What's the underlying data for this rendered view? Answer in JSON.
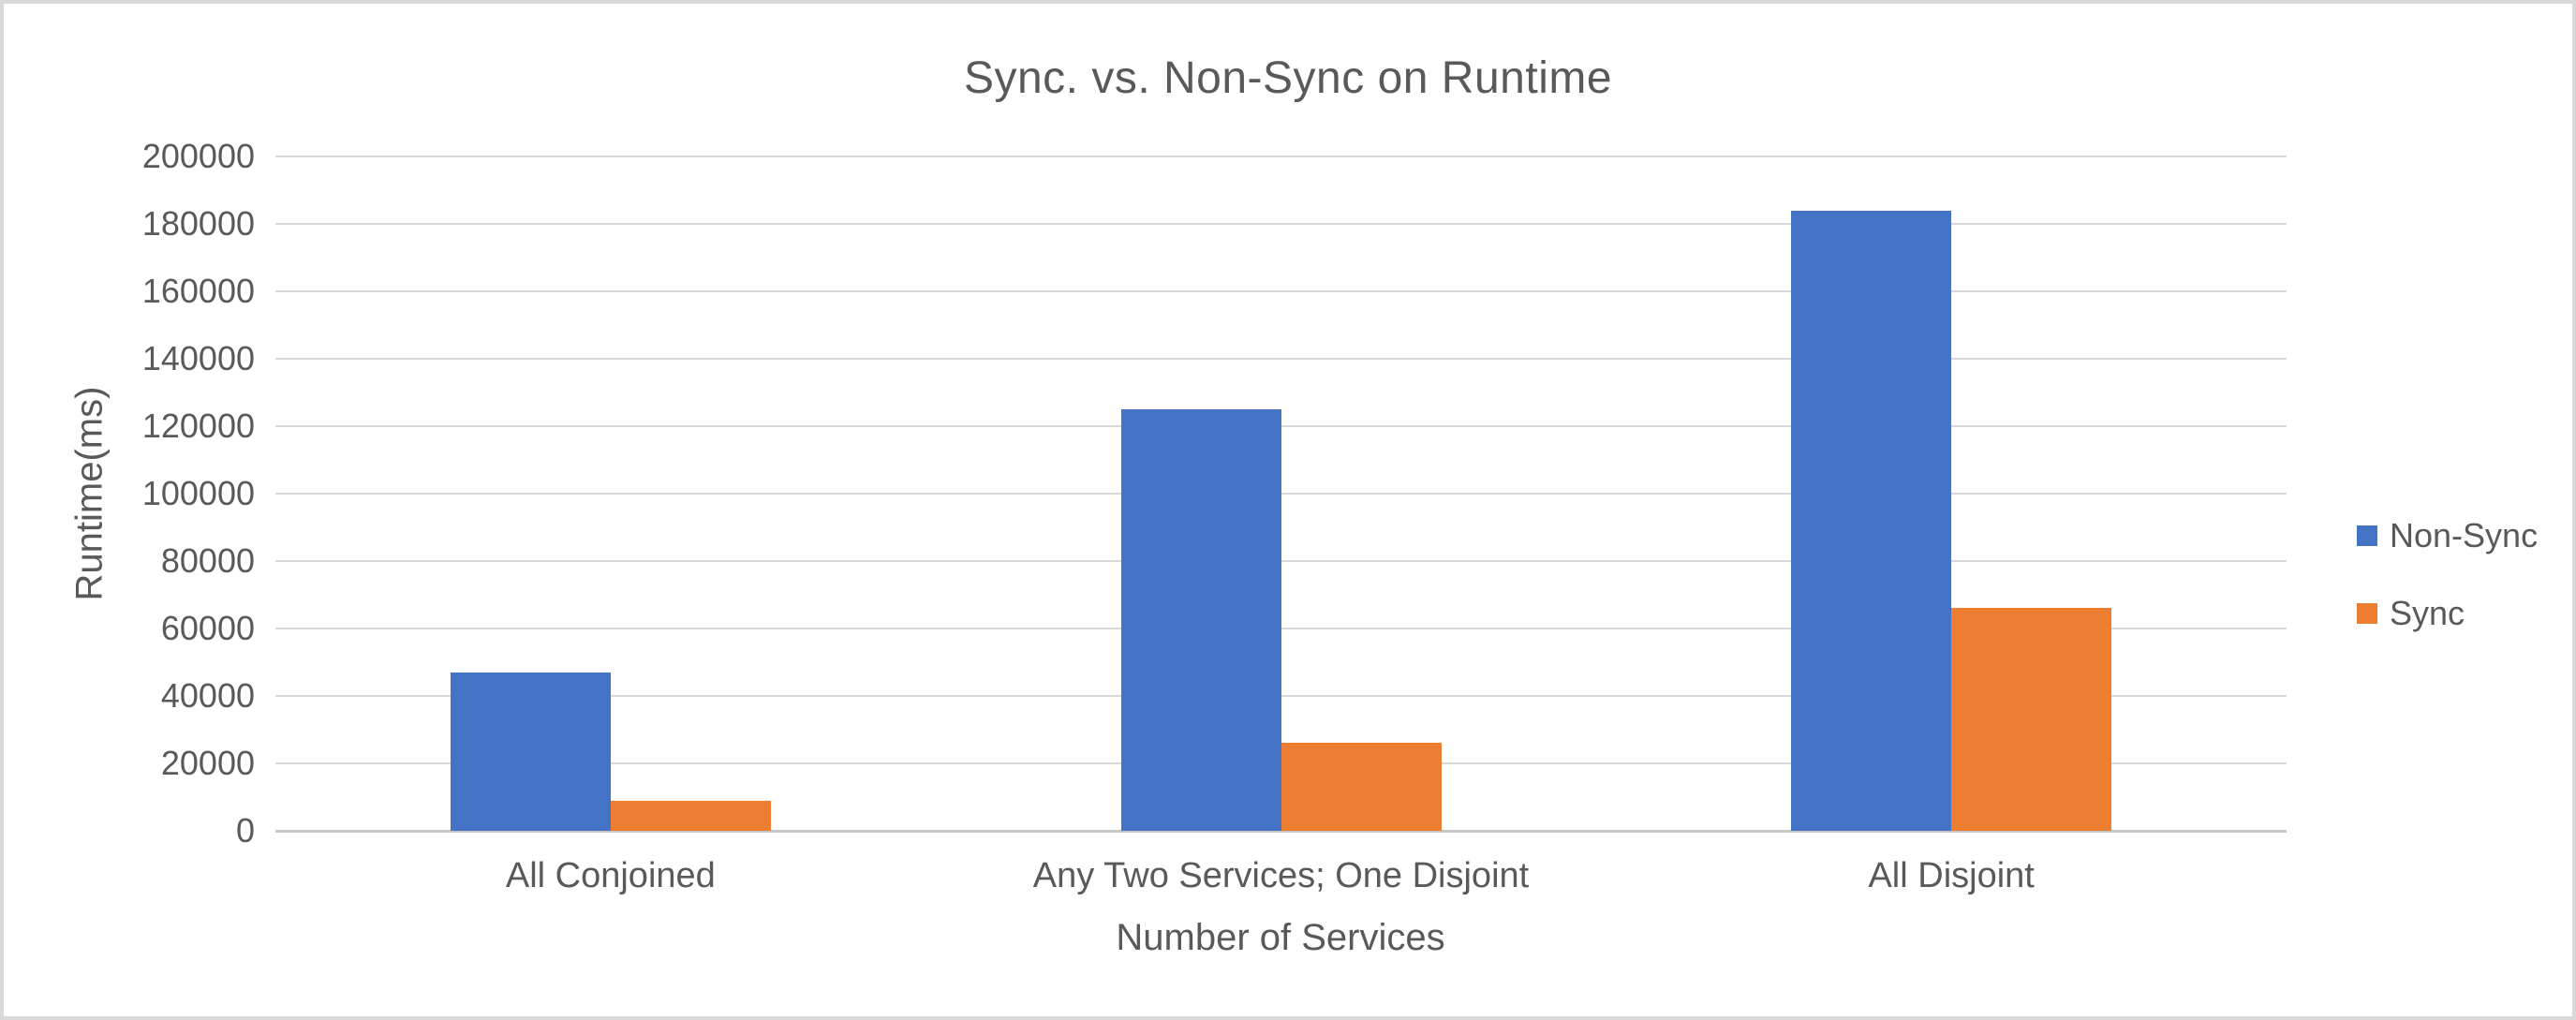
{
  "chart_data": {
    "type": "bar",
    "title": "Sync. vs. Non-Sync on Runtime",
    "xlabel": "Number of Services",
    "ylabel": "Runtime(ms)",
    "categories": [
      "All Conjoined",
      "Any Two Services; One Disjoint",
      "All Disjoint"
    ],
    "series": [
      {
        "name": "Non-Sync",
        "color": "#4472C4",
        "values": [
          47000,
          125000,
          184000
        ]
      },
      {
        "name": "Sync",
        "color": "#ED7D31",
        "values": [
          9000,
          26000,
          66000
        ]
      }
    ],
    "ylim": [
      0,
      200000
    ],
    "ytick_step": 20000,
    "ytick_labels": [
      "0",
      "20000",
      "40000",
      "60000",
      "80000",
      "100000",
      "120000",
      "140000",
      "160000",
      "180000",
      "200000"
    ],
    "grid": true,
    "legend_position": "right"
  },
  "colors": {
    "text": "#595959",
    "gridline": "#d9d9d9",
    "axis_line": "#c6c6c6",
    "background": "#ffffff",
    "border": "#d9d9d9"
  }
}
